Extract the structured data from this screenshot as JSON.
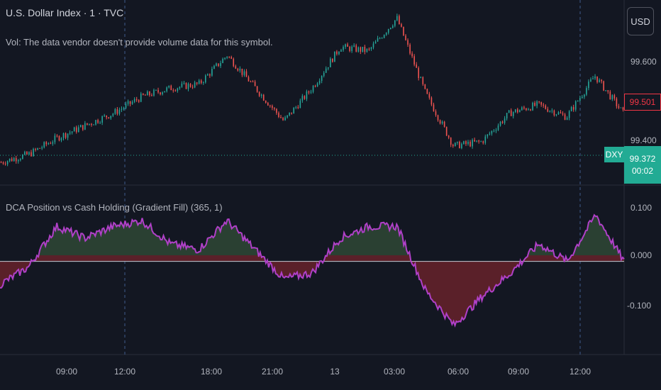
{
  "header": {
    "title": "U.S. Dollar Index · 1 · TVC",
    "volume_note": "Vol: The data vendor doesn't provide volume data for this symbol.",
    "currency_button": "USD"
  },
  "price_panel": {
    "y_ticks": [
      "99.600",
      "99.400"
    ],
    "current_price_tag": "99.501",
    "symbol_tag": "DXY",
    "last_price": "99.372",
    "countdown": "00:02"
  },
  "indicator_panel": {
    "title": "DCA Position vs Cash Holding (Gradient Fill) (365, 1)",
    "y_ticks": [
      "0.100",
      "0.000",
      "-0.100"
    ]
  },
  "x_axis": {
    "ticks": [
      "09:00",
      "12:00",
      "18:00",
      "21:00",
      "13",
      "03:00",
      "06:00",
      "09:00",
      "12:00"
    ]
  },
  "colors": {
    "background": "#131722",
    "up_candle": "#26a69a",
    "down_candle": "#ef5350",
    "indicator_line": "#b040c8",
    "positive_fill": "#2a4032",
    "negative_fill": "#5a2029",
    "last_price": "#22ab94",
    "price_tag": "#f23645"
  },
  "chart_data": [
    {
      "type": "line",
      "title": "U.S. Dollar Index · 1 · TVC",
      "series": [
        {
          "name": "DXY",
          "x": [
            "06:00",
            "07:30",
            "09:00",
            "10:30",
            "12:00",
            "13:30",
            "15:00",
            "16:30",
            "18:00",
            "19:30",
            "21:00",
            "22:30",
            "00:00",
            "01:30",
            "03:00",
            "04:30",
            "06:00",
            "07:30",
            "09:00",
            "10:30",
            "12:00",
            "13:30",
            "14:00"
          ],
          "values": [
            99.38,
            99.4,
            99.44,
            99.47,
            99.5,
            99.54,
            99.56,
            99.57,
            99.64,
            99.56,
            99.48,
            99.56,
            99.66,
            99.65,
            99.73,
            99.55,
            99.42,
            99.43,
            99.5,
            99.52,
            99.49,
            99.59,
            99.5
          ]
        }
      ],
      "ylim": [
        99.33,
        99.76
      ],
      "ylabel": ""
    },
    {
      "type": "area",
      "title": "DCA Position vs Cash Holding (Gradient Fill) (365, 1)",
      "series": [
        {
          "name": "DCA Position vs Cash Holding",
          "x": [
            "06:00",
            "07:30",
            "09:00",
            "10:30",
            "12:00",
            "13:30",
            "15:00",
            "16:30",
            "18:00",
            "19:30",
            "21:00",
            "22:30",
            "00:00",
            "01:30",
            "03:00",
            "04:30",
            "06:00",
            "07:30",
            "09:00",
            "10:30",
            "12:00",
            "13:30",
            "14:00"
          ],
          "values": [
            -0.04,
            -0.01,
            0.06,
            0.04,
            0.06,
            0.07,
            0.03,
            0.02,
            0.07,
            0.02,
            -0.03,
            -0.02,
            0.04,
            0.06,
            0.06,
            -0.05,
            -0.11,
            -0.06,
            -0.02,
            0.03,
            0.0,
            0.08,
            0.0
          ]
        }
      ],
      "ylim": [
        -0.16,
        0.12
      ],
      "ylabel": ""
    }
  ]
}
